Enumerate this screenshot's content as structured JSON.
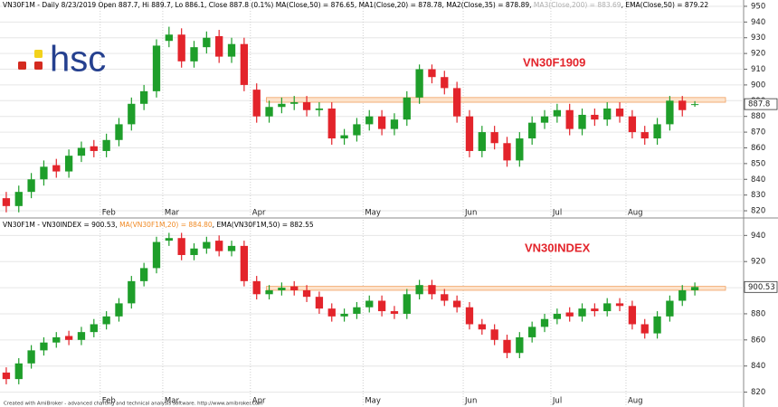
{
  "logo": "hsc",
  "footer": "Created with AmiBroker - advanced charting and technical analysis software. http://www.amibroker.com",
  "chart_data": [
    {
      "type": "candlestick",
      "header": [
        {
          "text": "VN30F1M - Daily 8/23/2019 Open 887.7, Hi 889.7, Lo 886.1, Close 887.8 (0.1%) MA(Close,50) = 876.65, MA1(Close,20) = 878.78, MA2(Close,35) = 878.89, ",
          "color": "#000000"
        },
        {
          "text": "MA3(Close,200) = 883.69",
          "color": "#b0b0b0"
        },
        {
          "text": ", EMA(Close,50) = 879.22",
          "color": "#000000"
        }
      ],
      "label": "VN30F1909",
      "categories": [
        null,
        null,
        null,
        null,
        null,
        null,
        null,
        null,
        "Feb",
        null,
        null,
        null,
        null,
        "Mar",
        null,
        null,
        null,
        null,
        null,
        null,
        "Apr",
        null,
        null,
        null,
        null,
        null,
        null,
        null,
        null,
        "May",
        null,
        null,
        null,
        null,
        null,
        null,
        null,
        "Jun",
        null,
        null,
        null,
        null,
        null,
        null,
        "Jul",
        null,
        null,
        null,
        null,
        null,
        "Aug",
        null,
        null,
        null,
        null,
        null
      ],
      "open": [
        828,
        823,
        832,
        840,
        849,
        845,
        855,
        861,
        858,
        865,
        875,
        888,
        896,
        928,
        932,
        915,
        924,
        931,
        918,
        926,
        897,
        880,
        886,
        888,
        889,
        884,
        885,
        866,
        868,
        875,
        880,
        872,
        878,
        892,
        910,
        905,
        898,
        880,
        858,
        870,
        863,
        852,
        866,
        876,
        880,
        884,
        872,
        881,
        878,
        885,
        880,
        870,
        866,
        875,
        890,
        887.7
      ],
      "high": [
        832,
        836,
        844,
        852,
        853,
        859,
        864,
        865,
        869,
        879,
        892,
        900,
        929,
        937,
        936,
        928,
        934,
        935,
        930,
        930,
        901,
        890,
        892,
        893,
        893,
        889,
        889,
        872,
        879,
        884,
        884,
        882,
        896,
        913,
        913,
        909,
        902,
        884,
        874,
        874,
        867,
        870,
        880,
        884,
        888,
        888,
        885,
        885,
        889,
        889,
        884,
        874,
        879,
        893,
        893,
        889.7
      ],
      "low": [
        819,
        819,
        828,
        836,
        841,
        841,
        851,
        854,
        854,
        861,
        871,
        884,
        892,
        924,
        911,
        911,
        920,
        914,
        914,
        896,
        876,
        876,
        882,
        884,
        880,
        880,
        862,
        862,
        864,
        871,
        868,
        868,
        874,
        888,
        901,
        894,
        876,
        854,
        854,
        859,
        848,
        848,
        862,
        872,
        876,
        868,
        868,
        874,
        874,
        876,
        866,
        862,
        862,
        871,
        880,
        886.1
      ],
      "close": [
        823,
        832,
        840,
        848,
        845,
        855,
        860,
        858,
        865,
        875,
        888,
        896,
        925,
        932,
        915,
        924,
        930,
        918,
        926,
        900,
        880,
        886,
        888,
        889,
        884,
        885,
        866,
        868,
        875,
        880,
        872,
        878,
        892,
        910,
        905,
        898,
        880,
        858,
        870,
        863,
        852,
        866,
        876,
        880,
        884,
        872,
        881,
        878,
        885,
        880,
        870,
        866,
        875,
        890,
        884,
        887.8
      ],
      "up_color": "#1e9e2a",
      "down_color": "#e3242b",
      "ylim": [
        816,
        954
      ],
      "yticks": [
        820,
        830,
        840,
        850,
        860,
        870,
        880,
        890,
        900,
        910,
        920,
        930,
        940,
        950
      ],
      "band": [
        889,
        892
      ],
      "band_color": "#fde3cc",
      "grid": true
    },
    {
      "type": "candlestick",
      "header": [
        {
          "text": "VN30F1M - VN30INDEX = 900.53, ",
          "color": "#000000"
        },
        {
          "text": "MA(VN30F1M,20) = 884.80",
          "color": "#f08a24"
        },
        {
          "text": ", EMA(VN30F1M,50) = 882.55",
          "color": "#000000"
        }
      ],
      "label": "VN30INDEX",
      "categories": [
        null,
        null,
        null,
        null,
        null,
        null,
        null,
        null,
        "Feb",
        null,
        null,
        null,
        null,
        "Mar",
        null,
        null,
        null,
        null,
        null,
        null,
        "Apr",
        null,
        null,
        null,
        null,
        null,
        null,
        null,
        null,
        "May",
        null,
        null,
        null,
        null,
        null,
        null,
        null,
        "Jun",
        null,
        null,
        null,
        null,
        null,
        null,
        "Jul",
        null,
        null,
        null,
        null,
        null,
        "Aug",
        null,
        null,
        null,
        null,
        null
      ],
      "open": [
        835,
        830,
        842,
        852,
        858,
        863,
        860,
        866,
        872,
        878,
        888,
        905,
        915,
        936,
        938,
        925,
        930,
        936,
        928,
        932,
        905,
        895,
        898,
        901,
        898,
        893,
        884,
        878,
        880,
        885,
        890,
        882,
        880,
        895,
        902,
        895,
        890,
        885,
        872,
        868,
        860,
        850,
        862,
        870,
        876,
        881,
        878,
        884,
        882,
        888,
        886,
        872,
        865,
        878,
        890,
        898
      ],
      "high": [
        839,
        846,
        856,
        862,
        866,
        867,
        870,
        876,
        882,
        892,
        909,
        919,
        939,
        942,
        942,
        934,
        939,
        940,
        936,
        936,
        909,
        902,
        904,
        905,
        902,
        897,
        888,
        884,
        889,
        894,
        894,
        886,
        899,
        906,
        906,
        899,
        894,
        889,
        876,
        872,
        864,
        866,
        874,
        880,
        884,
        885,
        888,
        888,
        892,
        892,
        890,
        876,
        882,
        894,
        902,
        904
      ],
      "low": [
        826,
        826,
        838,
        848,
        854,
        856,
        856,
        862,
        868,
        874,
        884,
        901,
        911,
        932,
        921,
        921,
        926,
        924,
        924,
        901,
        891,
        891,
        894,
        894,
        889,
        880,
        874,
        874,
        876,
        881,
        878,
        876,
        876,
        891,
        891,
        886,
        881,
        868,
        864,
        856,
        846,
        846,
        858,
        866,
        872,
        874,
        874,
        878,
        878,
        882,
        868,
        861,
        861,
        874,
        886,
        894
      ],
      "close": [
        830,
        842,
        852,
        858,
        862,
        860,
        866,
        872,
        878,
        888,
        905,
        915,
        935,
        938,
        925,
        930,
        935,
        928,
        932,
        905,
        895,
        898,
        900,
        898,
        893,
        884,
        878,
        880,
        885,
        890,
        882,
        880,
        895,
        902,
        895,
        890,
        885,
        872,
        868,
        860,
        850,
        862,
        870,
        876,
        880,
        878,
        884,
        882,
        888,
        886,
        872,
        865,
        878,
        890,
        898,
        900.53
      ],
      "up_color": "#1e9e2a",
      "down_color": "#e3242b",
      "ylim": [
        810,
        952
      ],
      "yticks": [
        820,
        840,
        860,
        880,
        900,
        920,
        940
      ],
      "band": [
        898,
        901
      ],
      "band_color": "#fde3cc",
      "grid": true
    }
  ]
}
